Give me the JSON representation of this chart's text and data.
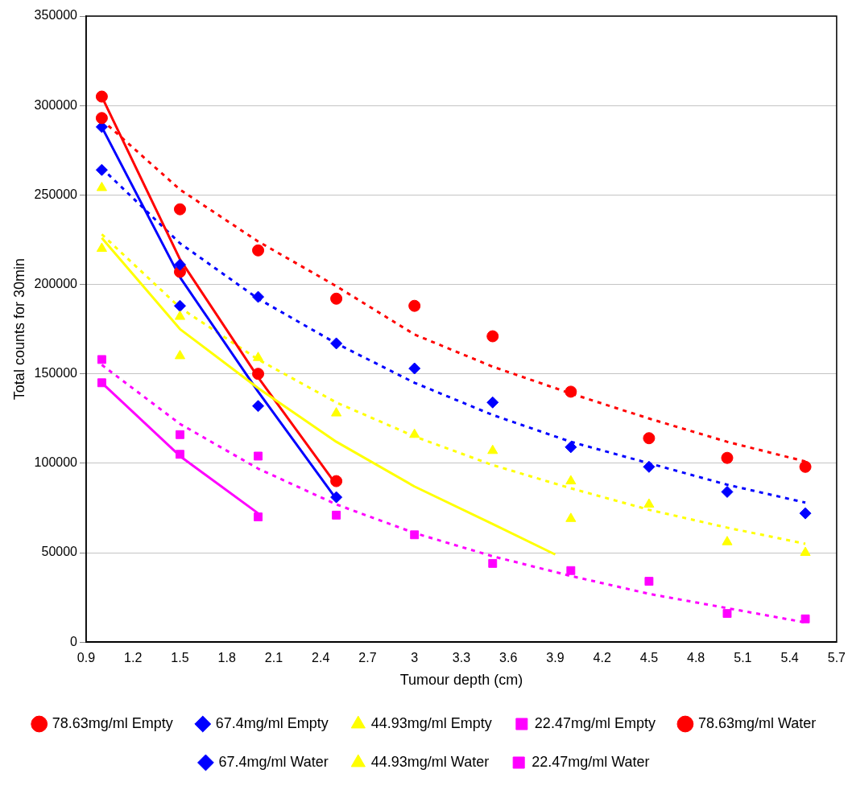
{
  "chart_data": {
    "type": "scatter",
    "xlabel": "Tumour depth (cm)",
    "ylabel": "Total counts for 30min",
    "xlim": [
      0.9,
      5.7
    ],
    "xticks": [
      0.9,
      1.2,
      1.5,
      1.8,
      2.1,
      2.4,
      2.7,
      3,
      3.3,
      3.6,
      3.9,
      4.2,
      4.5,
      4.8,
      5.1,
      5.4,
      5.7
    ],
    "ylim": [
      0,
      350000
    ],
    "yticks": [
      0,
      50000,
      100000,
      150000,
      200000,
      250000,
      300000,
      350000
    ],
    "grid": "y",
    "legend": "bottom",
    "series": [
      {
        "name": "22.47mg/ml Water",
        "color": "#ff00ff",
        "marker": "square",
        "x": [
          1.0,
          1.5,
          2.0
        ],
        "values": [
          145000,
          105000,
          70000
        ]
      },
      {
        "name": "44.93mg/ml Water",
        "color": "#ffff00",
        "marker": "triangle",
        "x": [
          1.0,
          1.5,
          4.0
        ],
        "values": [
          254000,
          160000,
          69000
        ]
      },
      {
        "name": "67.4mg/ml Water",
        "color": "#0000ff",
        "marker": "diamond",
        "x": [
          1.0,
          1.5,
          2.0,
          2.5
        ],
        "values": [
          288000,
          188000,
          132000,
          81000
        ]
      },
      {
        "name": "78.63mg/ml Water",
        "color": "#ff0000",
        "marker": "circle",
        "x": [
          1.0,
          1.5,
          2.0,
          2.5
        ],
        "values": [
          305000,
          207000,
          150000,
          90000
        ]
      },
      {
        "name": "22.47mg/ml Empty",
        "color": "#ff00ff",
        "marker": "square",
        "x": [
          1.0,
          1.5,
          2.0,
          2.5,
          3.0,
          3.5,
          4.0,
          4.5,
          5.0,
          5.5
        ],
        "values": [
          158000,
          116000,
          104000,
          71000,
          60000,
          44000,
          40000,
          34000,
          16000,
          13000
        ]
      },
      {
        "name": "44.93mg/ml Empty",
        "color": "#ffff00",
        "marker": "triangle",
        "x": [
          1.0,
          1.5,
          2.0,
          2.5,
          3.0,
          3.5,
          4.0,
          4.5,
          5.0,
          5.5
        ],
        "values": [
          220000,
          182000,
          159000,
          128000,
          116000,
          107000,
          90000,
          77000,
          56000,
          50000
        ]
      },
      {
        "name": "67.4mg/ml Empty",
        "color": "#0000ff",
        "marker": "diamond",
        "x": [
          1.0,
          1.5,
          2.0,
          2.5,
          3.0,
          3.5,
          4.0,
          4.5,
          5.0,
          5.5
        ],
        "values": [
          264000,
          211000,
          193000,
          167000,
          153000,
          134000,
          109000,
          98000,
          84000,
          72000
        ]
      },
      {
        "name": "78.63mg/ml Empty",
        "color": "#ff0000",
        "marker": "circle",
        "x": [
          1.0,
          1.5,
          2.0,
          2.5,
          3.0,
          3.5,
          4.0,
          4.5,
          5.0,
          5.5
        ],
        "values": [
          293000,
          242000,
          219000,
          192000,
          188000,
          171000,
          140000,
          114000,
          103000,
          98000
        ]
      },
      {
        "type": "line",
        "color": "#ff00ff",
        "line_style": "solid",
        "x": [
          1.0,
          1.5,
          2.0
        ],
        "values": [
          145000,
          104000,
          72000
        ]
      },
      {
        "type": "line",
        "color": "#ffff00",
        "line_style": "solid",
        "x": [
          1.0,
          1.5,
          2.0,
          2.5,
          3.0,
          3.5,
          3.9
        ],
        "values": [
          226000,
          175000,
          142000,
          112000,
          87000,
          66000,
          49000
        ]
      },
      {
        "type": "line",
        "color": "#0000ff",
        "line_style": "solid",
        "x": [
          1.0,
          1.5,
          2.0,
          2.5
        ],
        "values": [
          288000,
          204000,
          140000,
          80000
        ]
      },
      {
        "type": "line",
        "color": "#ff0000",
        "line_style": "solid",
        "x": [
          1.0,
          1.5,
          2.0,
          2.5
        ],
        "values": [
          305000,
          214000,
          148000,
          88000
        ]
      },
      {
        "type": "line",
        "color": "#ff00ff",
        "line_style": "dashed",
        "x": [
          1.0,
          1.5,
          2.0,
          2.5,
          3.0,
          3.5,
          4.0,
          4.5,
          5.0,
          5.5
        ],
        "values": [
          155000,
          122000,
          97000,
          77000,
          61000,
          48000,
          37000,
          27000,
          19000,
          11000
        ]
      },
      {
        "type": "line",
        "color": "#ffff00",
        "line_style": "dashed",
        "x": [
          1.0,
          1.5,
          2.0,
          2.5,
          3.0,
          3.5,
          4.0,
          4.5,
          5.0,
          5.5
        ],
        "values": [
          228000,
          187000,
          158000,
          134000,
          115000,
          99000,
          86000,
          74000,
          64000,
          55000
        ]
      },
      {
        "type": "line",
        "color": "#0000ff",
        "line_style": "dashed",
        "x": [
          1.0,
          1.5,
          2.0,
          2.5,
          3.0,
          3.5,
          4.0,
          4.5,
          5.0,
          5.5
        ],
        "values": [
          265000,
          223000,
          192000,
          167000,
          145000,
          127000,
          112000,
          100000,
          88000,
          78000
        ]
      },
      {
        "type": "line",
        "color": "#ff0000",
        "line_style": "dashed",
        "x": [
          1.0,
          1.5,
          2.0,
          2.5,
          3.0,
          3.5,
          4.0,
          4.5,
          5.0,
          5.5
        ],
        "values": [
          292000,
          253000,
          224000,
          199000,
          172000,
          154000,
          139000,
          125000,
          112000,
          101000
        ]
      }
    ]
  }
}
